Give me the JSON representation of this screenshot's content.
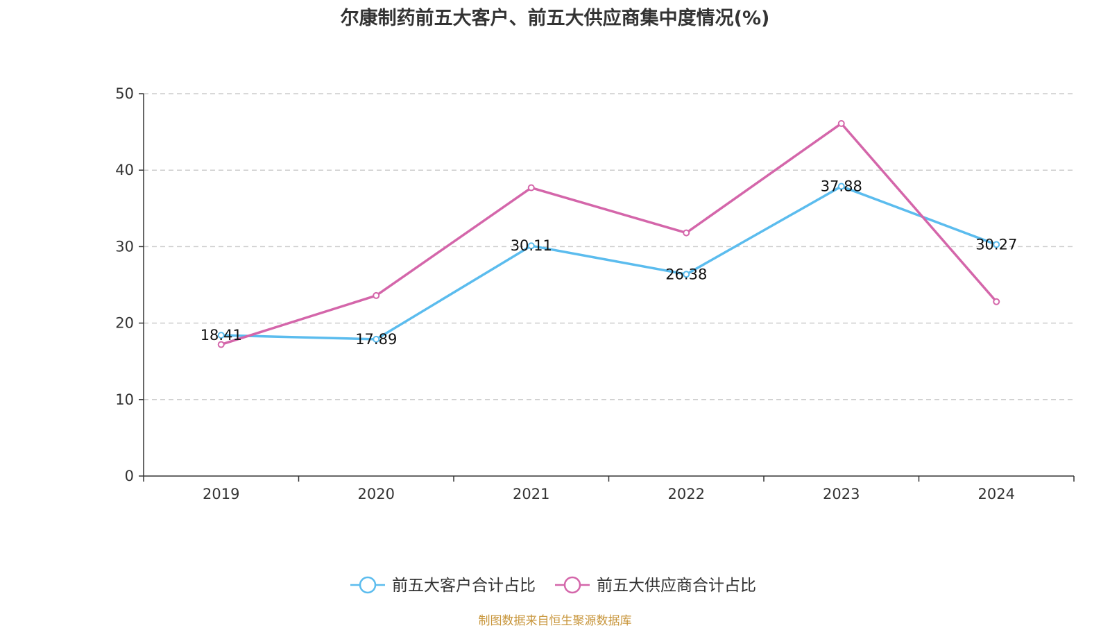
{
  "chart_data": {
    "type": "line",
    "title": "尔康制药前五大客户、前五大供应商集中度情况(%)",
    "categories": [
      "2019",
      "2020",
      "2021",
      "2022",
      "2023",
      "2024"
    ],
    "ylim": [
      0,
      50
    ],
    "yticks": [
      0,
      10,
      20,
      30,
      40,
      50
    ],
    "grid": true,
    "legend_position": "bottom",
    "xlabel": "",
    "ylabel": "",
    "series": [
      {
        "name": "前五大客户合计占比",
        "color": "#5bbcee",
        "values": [
          18.41,
          17.89,
          30.11,
          26.38,
          37.88,
          30.27
        ],
        "labels": [
          "18.41",
          "17.89",
          "30.11",
          "26.38",
          "37.88",
          "30.27"
        ]
      },
      {
        "name": "前五大供应商合计占比",
        "color": "#d466aa",
        "values": [
          17.2,
          23.6,
          37.7,
          31.8,
          46.1,
          22.8
        ],
        "labels": []
      }
    ],
    "source": "制图数据来自恒生聚源数据库"
  }
}
